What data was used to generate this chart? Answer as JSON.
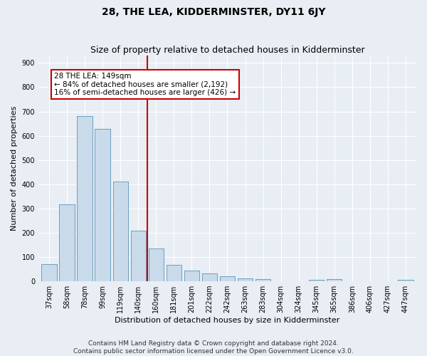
{
  "title": "28, THE LEA, KIDDERMINSTER, DY11 6JY",
  "subtitle": "Size of property relative to detached houses in Kidderminster",
  "xlabel": "Distribution of detached houses by size in Kidderminster",
  "ylabel": "Number of detached properties",
  "footer1": "Contains HM Land Registry data © Crown copyright and database right 2024.",
  "footer2": "Contains public sector information licensed under the Open Government Licence v3.0.",
  "categories": [
    "37sqm",
    "58sqm",
    "78sqm",
    "99sqm",
    "119sqm",
    "140sqm",
    "160sqm",
    "181sqm",
    "201sqm",
    "222sqm",
    "242sqm",
    "263sqm",
    "283sqm",
    "304sqm",
    "324sqm",
    "345sqm",
    "365sqm",
    "386sqm",
    "406sqm",
    "427sqm",
    "447sqm"
  ],
  "values": [
    70,
    318,
    680,
    628,
    410,
    208,
    135,
    68,
    45,
    32,
    20,
    12,
    10,
    0,
    0,
    5,
    8,
    0,
    0,
    0,
    5
  ],
  "bar_color": "#c9daea",
  "bar_edge_color": "#6a9fc0",
  "vline_x": 5.5,
  "vline_color": "#cc0000",
  "annotation_text": "28 THE LEA: 149sqm\n← 84% of detached houses are smaller (2,192)\n16% of semi-detached houses are larger (426) →",
  "annotation_box_color": "#ffffff",
  "annotation_box_edge": "#cc0000",
  "ylim": [
    0,
    930
  ],
  "yticks": [
    0,
    100,
    200,
    300,
    400,
    500,
    600,
    700,
    800,
    900
  ],
  "bg_color": "#e8eef4",
  "plot_bg_color": "#e8eef4",
  "grid_color": "#ffffff",
  "title_fontsize": 10,
  "subtitle_fontsize": 9,
  "axis_label_fontsize": 8,
  "tick_fontsize": 7,
  "annotation_fontsize": 7.5,
  "footer_fontsize": 6.5
}
